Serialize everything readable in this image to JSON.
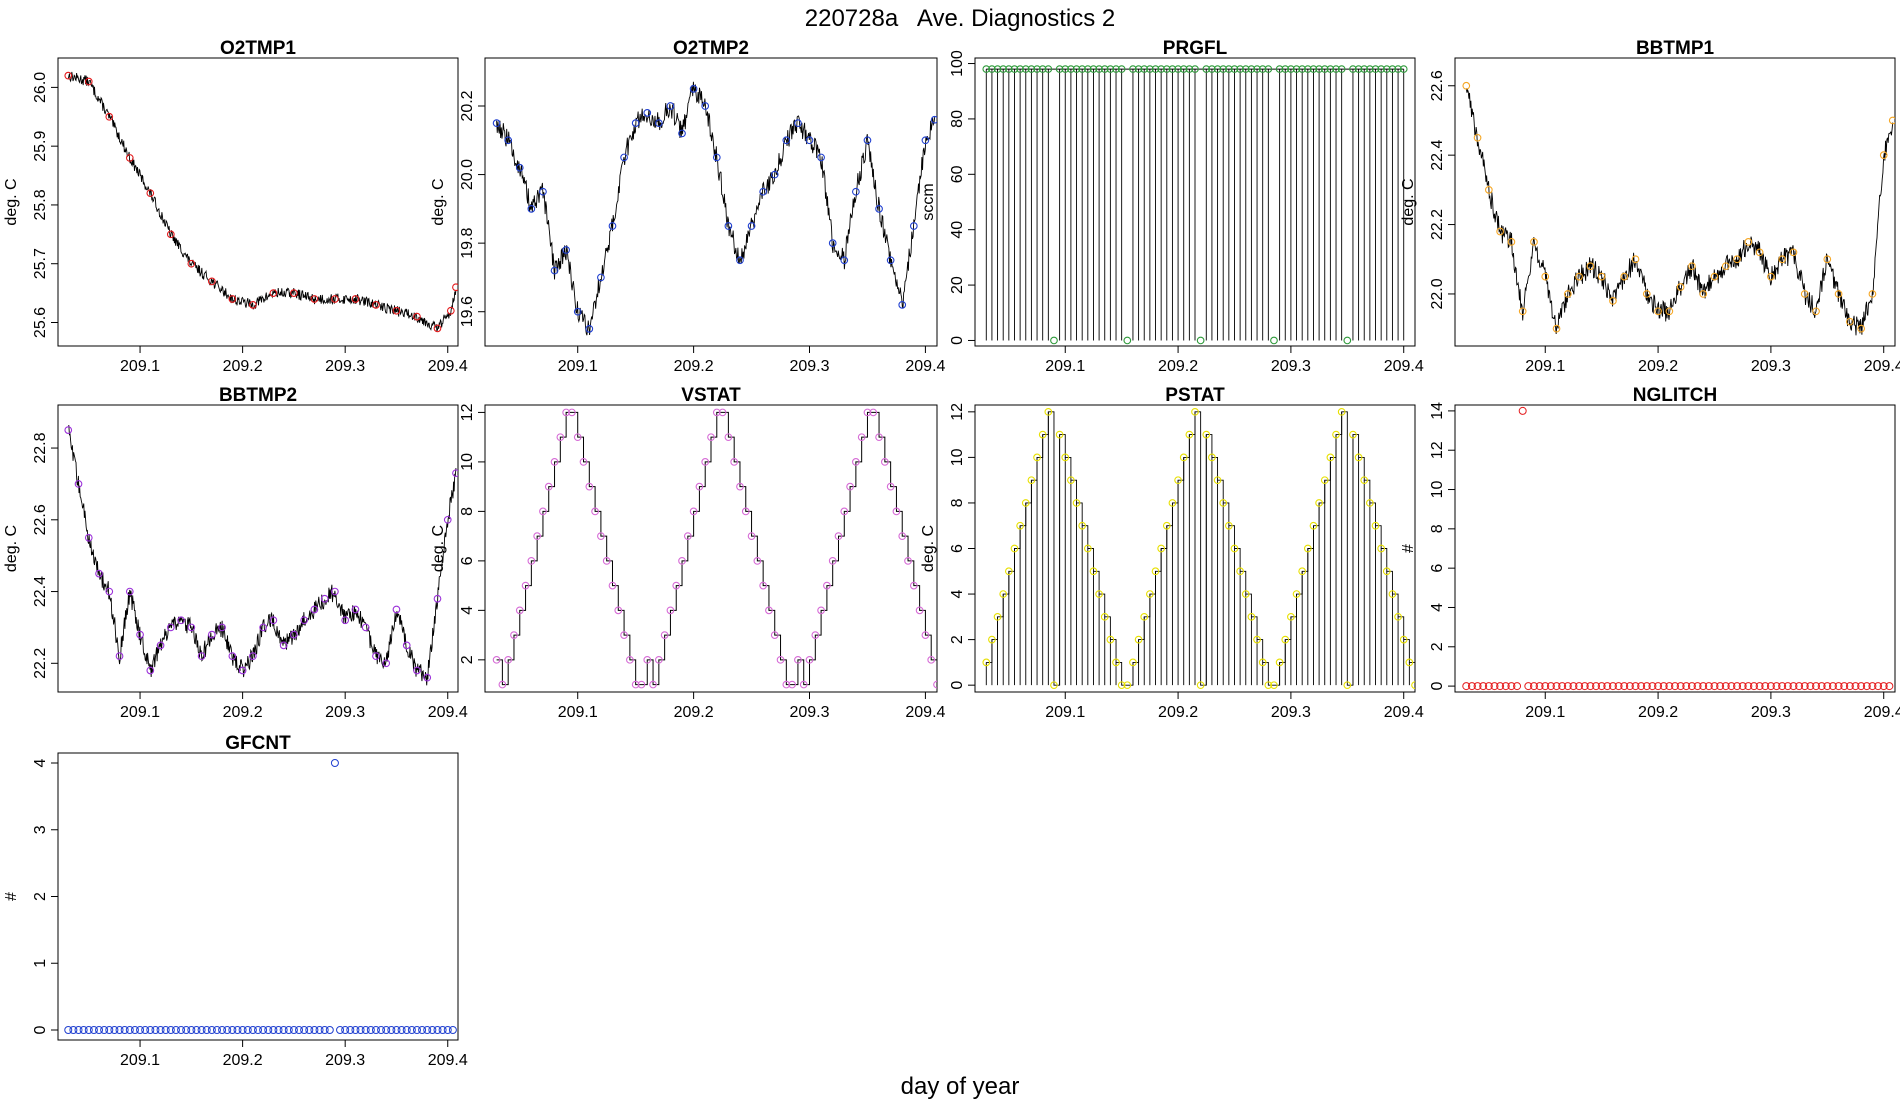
{
  "figure_title": "220728a   Ave. Diagnostics 2",
  "common_xlabel": "day of year",
  "chart_data": [
    {
      "id": "o2tmp1",
      "type": "line",
      "title": "O2TMP1",
      "ylabel": "deg. C",
      "xlim": [
        209.02,
        209.41
      ],
      "ylim": [
        25.56,
        26.05
      ],
      "xticks": [
        209.1,
        209.2,
        209.3,
        209.4
      ],
      "xtick_labels": [
        "209.1",
        "209.2",
        "209.3",
        "209.4"
      ],
      "yticks": [
        25.6,
        25.7,
        25.8,
        25.9,
        26.0
      ],
      "ytick_labels": [
        "25.6",
        "25.7",
        "25.8",
        "25.9",
        "26.0"
      ],
      "point_color": "#e41a1c",
      "noise": 0.009,
      "series": [
        {
          "name": "O2TMP1",
          "x": [
            209.03,
            209.05,
            209.07,
            209.09,
            209.11,
            209.13,
            209.15,
            209.17,
            209.19,
            209.21,
            209.23,
            209.25,
            209.27,
            209.29,
            209.31,
            209.33,
            209.35,
            209.37,
            209.39,
            209.403,
            209.408
          ],
          "values": [
            26.02,
            26.01,
            25.95,
            25.88,
            25.82,
            25.75,
            25.7,
            25.67,
            25.64,
            25.63,
            25.65,
            25.65,
            25.64,
            25.64,
            25.64,
            25.63,
            25.62,
            25.61,
            25.59,
            25.62,
            25.66
          ]
        }
      ]
    },
    {
      "id": "o2tmp2",
      "type": "line",
      "title": "O2TMP2",
      "ylabel": "deg. C",
      "xlim": [
        209.02,
        209.41
      ],
      "ylim": [
        19.5,
        20.34
      ],
      "xticks": [
        209.1,
        209.2,
        209.3,
        209.4
      ],
      "xtick_labels": [
        "209.1",
        "209.2",
        "209.3",
        "209.4"
      ],
      "yticks": [
        19.6,
        19.8,
        20.0,
        20.2
      ],
      "ytick_labels": [
        "19.6",
        "19.8",
        "20.0",
        "20.2"
      ],
      "point_color": "#1f3fd0",
      "noise": 0.03,
      "series": [
        {
          "name": "O2TMP2",
          "x": [
            209.03,
            209.04,
            209.05,
            209.06,
            209.07,
            209.08,
            209.09,
            209.1,
            209.11,
            209.12,
            209.13,
            209.14,
            209.15,
            209.16,
            209.17,
            209.18,
            209.19,
            209.2,
            209.21,
            209.22,
            209.23,
            209.24,
            209.25,
            209.26,
            209.27,
            209.28,
            209.29,
            209.3,
            209.31,
            209.32,
            209.33,
            209.34,
            209.35,
            209.36,
            209.37,
            209.38,
            209.39,
            209.4,
            209.408
          ],
          "values": [
            20.15,
            20.1,
            20.02,
            19.9,
            19.95,
            19.72,
            19.78,
            19.6,
            19.55,
            19.7,
            19.85,
            20.05,
            20.15,
            20.18,
            20.15,
            20.2,
            20.12,
            20.25,
            20.2,
            20.05,
            19.85,
            19.75,
            19.85,
            19.95,
            20.0,
            20.1,
            20.15,
            20.1,
            20.05,
            19.8,
            19.75,
            19.95,
            20.1,
            19.9,
            19.75,
            19.62,
            19.85,
            20.1,
            20.16
          ]
        }
      ]
    },
    {
      "id": "prgfl",
      "type": "line",
      "title": "PRGFL",
      "ylabel": "sccm",
      "xlim": [
        209.02,
        209.41
      ],
      "ylim": [
        -2,
        102
      ],
      "xticks": [
        209.1,
        209.2,
        209.3,
        209.4
      ],
      "xtick_labels": [
        "209.1",
        "209.2",
        "209.3",
        "209.4"
      ],
      "yticks": [
        0,
        20,
        40,
        60,
        80,
        100
      ],
      "ytick_labels": [
        "0",
        "20",
        "40",
        "60",
        "80",
        "100"
      ],
      "point_color": "#2e9a3a",
      "pattern": "spikes",
      "high": 98,
      "low": 0,
      "dx": 0.005,
      "cycle": 13,
      "zero_index": 12
    },
    {
      "id": "bbtmp1",
      "type": "line",
      "title": "BBTMP1",
      "ylabel": "deg. C",
      "xlim": [
        209.02,
        209.41
      ],
      "ylim": [
        21.85,
        22.68
      ],
      "xticks": [
        209.1,
        209.2,
        209.3,
        209.4
      ],
      "xtick_labels": [
        "209.1",
        "209.2",
        "209.3",
        "209.4"
      ],
      "yticks": [
        22.0,
        22.2,
        22.4,
        22.6
      ],
      "ytick_labels": [
        "22.0",
        "22.2",
        "22.4",
        "22.6"
      ],
      "point_color": "#f5a623",
      "noise": 0.03,
      "series": [
        {
          "name": "BBTMP1",
          "x": [
            209.03,
            209.04,
            209.05,
            209.06,
            209.07,
            209.08,
            209.09,
            209.1,
            209.11,
            209.12,
            209.13,
            209.14,
            209.15,
            209.16,
            209.17,
            209.18,
            209.19,
            209.2,
            209.21,
            209.22,
            209.23,
            209.24,
            209.25,
            209.26,
            209.27,
            209.28,
            209.29,
            209.3,
            209.31,
            209.32,
            209.33,
            209.34,
            209.35,
            209.36,
            209.37,
            209.38,
            209.39,
            209.4,
            209.408
          ],
          "values": [
            22.6,
            22.45,
            22.3,
            22.18,
            22.15,
            21.95,
            22.15,
            22.05,
            21.9,
            22.0,
            22.05,
            22.08,
            22.05,
            21.98,
            22.05,
            22.1,
            22.0,
            21.95,
            21.95,
            22.02,
            22.08,
            22.0,
            22.05,
            22.08,
            22.1,
            22.15,
            22.12,
            22.05,
            22.1,
            22.12,
            22.0,
            21.95,
            22.1,
            22.0,
            21.92,
            21.9,
            22.0,
            22.4,
            22.5
          ]
        }
      ]
    },
    {
      "id": "bbtmp2",
      "type": "line",
      "title": "BBTMP2",
      "ylabel": "deg. C",
      "xlim": [
        209.02,
        209.41
      ],
      "ylim": [
        22.12,
        22.92
      ],
      "xticks": [
        209.1,
        209.2,
        209.3,
        209.4
      ],
      "xtick_labels": [
        "209.1",
        "209.2",
        "209.3",
        "209.4"
      ],
      "yticks": [
        22.2,
        22.4,
        22.6,
        22.8
      ],
      "ytick_labels": [
        "22.2",
        "22.4",
        "22.6",
        "22.8"
      ],
      "point_color": "#9b30d9",
      "noise": 0.025,
      "series": [
        {
          "name": "BBTMP2",
          "x": [
            209.03,
            209.04,
            209.05,
            209.06,
            209.07,
            209.08,
            209.09,
            209.1,
            209.11,
            209.12,
            209.13,
            209.14,
            209.15,
            209.16,
            209.17,
            209.18,
            209.19,
            209.2,
            209.21,
            209.22,
            209.23,
            209.24,
            209.25,
            209.26,
            209.27,
            209.28,
            209.29,
            209.3,
            209.31,
            209.32,
            209.33,
            209.34,
            209.35,
            209.36,
            209.37,
            209.38,
            209.39,
            209.4,
            209.408
          ],
          "values": [
            22.85,
            22.7,
            22.55,
            22.45,
            22.4,
            22.22,
            22.4,
            22.28,
            22.18,
            22.25,
            22.3,
            22.32,
            22.3,
            22.22,
            22.28,
            22.3,
            22.22,
            22.18,
            22.22,
            22.3,
            22.32,
            22.25,
            22.28,
            22.32,
            22.35,
            22.38,
            22.4,
            22.32,
            22.35,
            22.3,
            22.22,
            22.2,
            22.35,
            22.25,
            22.18,
            22.16,
            22.38,
            22.6,
            22.73
          ]
        }
      ]
    },
    {
      "id": "vstat",
      "type": "line",
      "title": "VSTAT",
      "ylabel": "deg. C",
      "xlim": [
        209.02,
        209.41
      ],
      "ylim": [
        0.7,
        12.3
      ],
      "xticks": [
        209.1,
        209.2,
        209.3,
        209.4
      ],
      "xtick_labels": [
        "209.1",
        "209.2",
        "209.3",
        "209.4"
      ],
      "yticks": [
        2,
        4,
        6,
        8,
        10,
        12
      ],
      "ytick_labels": [
        "2",
        "4",
        "6",
        "8",
        "10",
        "12"
      ],
      "point_color": "#d66bd6",
      "pattern": "staircase",
      "seq": [
        2,
        1,
        2,
        3,
        4,
        5,
        6,
        7,
        8,
        9,
        10,
        11,
        12,
        12,
        11,
        10,
        9,
        8,
        7,
        6,
        5,
        4,
        3,
        2,
        1,
        1
      ],
      "repeat": 3,
      "x0": 209.03,
      "dx": 0.005
    },
    {
      "id": "pstat",
      "type": "line",
      "title": "PSTAT",
      "ylabel": "deg. C",
      "xlim": [
        209.02,
        209.41
      ],
      "ylim": [
        -0.3,
        12.3
      ],
      "xticks": [
        209.1,
        209.2,
        209.3,
        209.4
      ],
      "xtick_labels": [
        "209.1",
        "209.2",
        "209.3",
        "209.4"
      ],
      "yticks": [
        0,
        2,
        4,
        6,
        8,
        10,
        12
      ],
      "ytick_labels": [
        "0",
        "2",
        "4",
        "6",
        "8",
        "10",
        "12"
      ],
      "point_color": "#e8e000",
      "pattern": "spikes",
      "seq": [
        1,
        2,
        3,
        4,
        5,
        6,
        7,
        8,
        9,
        10,
        11,
        12,
        0,
        11,
        10,
        9,
        8,
        7,
        6,
        5,
        4,
        3,
        2,
        1,
        0,
        0
      ],
      "repeat": 3,
      "x0": 209.03,
      "dx": 0.005
    },
    {
      "id": "nglitch",
      "type": "scatter",
      "title": "NGLITCH",
      "ylabel": "#",
      "xlim": [
        209.02,
        209.41
      ],
      "ylim": [
        -0.3,
        14.3
      ],
      "xticks": [
        209.1,
        209.2,
        209.3,
        209.4
      ],
      "xtick_labels": [
        "209.1",
        "209.2",
        "209.3",
        "209.4"
      ],
      "yticks": [
        0,
        2,
        4,
        6,
        8,
        10,
        12,
        14
      ],
      "ytick_labels": [
        "0",
        "2",
        "4",
        "6",
        "8",
        "10",
        "12",
        "14"
      ],
      "point_color": "#e41a1c",
      "pattern": "points",
      "x0": 209.03,
      "dx": 0.005,
      "count": 76,
      "base": 0,
      "exceptions": [
        {
          "x": 209.08,
          "y": 14
        }
      ]
    },
    {
      "id": "gfcnt",
      "type": "scatter",
      "title": "GFCNT",
      "ylabel": "#",
      "xlim": [
        209.02,
        209.41
      ],
      "ylim": [
        -0.15,
        4.15
      ],
      "xticks": [
        209.1,
        209.2,
        209.3,
        209.4
      ],
      "xtick_labels": [
        "209.1",
        "209.2",
        "209.3",
        "209.4"
      ],
      "yticks": [
        0,
        1,
        2,
        3,
        4
      ],
      "ytick_labels": [
        "0",
        "1",
        "2",
        "3",
        "4"
      ],
      "point_color": "#1f3fd0",
      "pattern": "points",
      "x0": 209.03,
      "dx": 0.005,
      "count": 76,
      "base": 0,
      "exceptions": [
        {
          "x": 209.29,
          "y": 4
        }
      ]
    }
  ]
}
